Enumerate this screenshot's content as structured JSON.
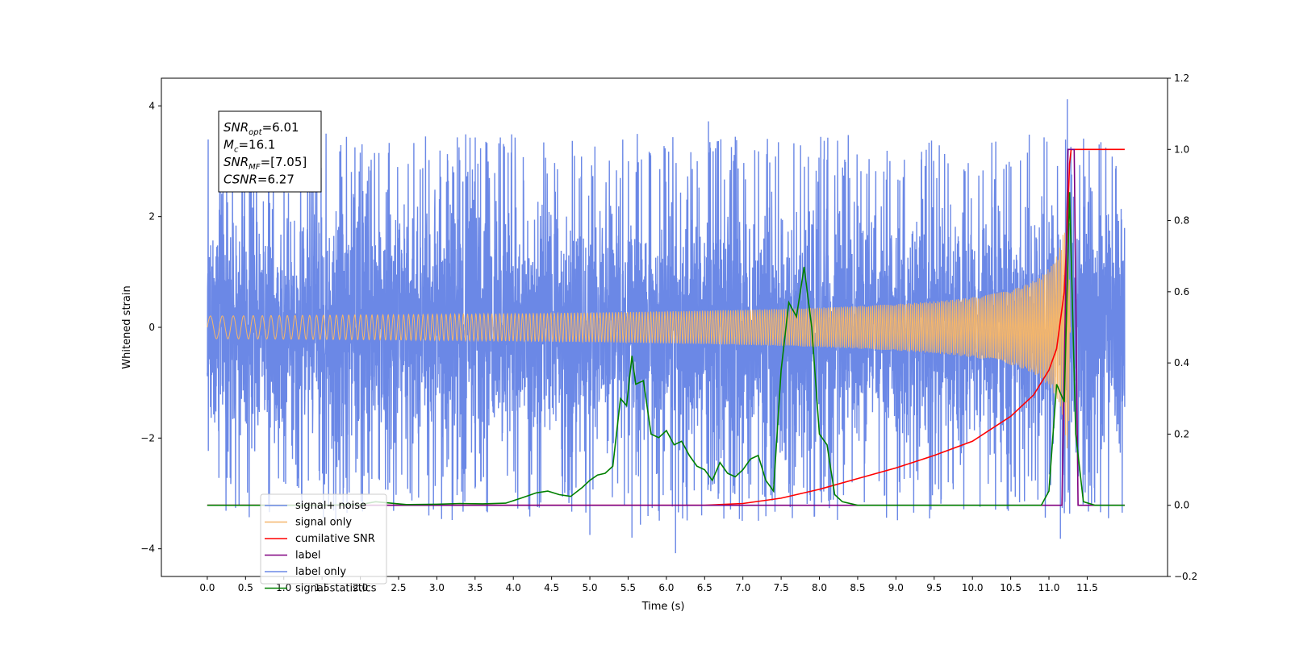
{
  "chart_data": {
    "type": "line",
    "xlabel": "Time (s)",
    "ylabel": "Whitened strain",
    "xlim": [
      -0.6,
      12.55
    ],
    "ylim": [
      -4.5,
      4.5
    ],
    "ylim_right": [
      -0.2,
      1.2
    ],
    "x_ticks": [
      "0.0",
      "0.5",
      "1.0",
      "1.5",
      "2.0",
      "2.5",
      "3.0",
      "3.5",
      "4.0",
      "4.5",
      "5.0",
      "5.5",
      "6.0",
      "6.5",
      "7.0",
      "7.5",
      "8.0",
      "8.5",
      "9.0",
      "9.5",
      "10.0",
      "10.5",
      "11.0",
      "11.5"
    ],
    "y_ticks_left": [
      "−4",
      "−2",
      "0",
      "2",
      "4"
    ],
    "y_ticks_right": [
      "−0.2",
      "0.0",
      "0.2",
      "0.4",
      "0.6",
      "0.8",
      "1.0",
      "1.2"
    ],
    "annotation": [
      {
        "sym": "SNR",
        "sub": "opt",
        "val": "=6.01"
      },
      {
        "sym": "M",
        "sub": "c",
        "val": "=16.1"
      },
      {
        "sym": "SNR",
        "sub": "MF",
        "val": "=[7.05]"
      },
      {
        "sym": "CSNR",
        "sub": "",
        "val": "=6.27"
      }
    ],
    "legend_position": "lower-left",
    "noise_band": {
      "x_range": [
        0.0,
        11.99
      ],
      "typical_amplitude": 2.5,
      "max_amplitude": 4.12,
      "min_amplitude": -4.08
    },
    "chirp": {
      "x_range": [
        0.0,
        11.28
      ],
      "peak_time": 11.25,
      "peak_amplitude": 2.6
    },
    "series": [
      {
        "name": "signal+ noise",
        "color": "#6b88e6"
      },
      {
        "name": "signal only",
        "color": "#f5b66a"
      },
      {
        "name": "cumilative SNR",
        "color": "#ff0000",
        "axis": "right",
        "x": [
          0,
          6.5,
          7.0,
          7.5,
          8.0,
          8.5,
          9.0,
          9.5,
          10.0,
          10.5,
          10.8,
          11.0,
          11.1,
          11.2,
          11.24,
          11.27,
          11.29,
          11.99
        ],
        "y": [
          0,
          0,
          0.005,
          0.02,
          0.045,
          0.075,
          0.105,
          0.14,
          0.18,
          0.25,
          0.31,
          0.38,
          0.44,
          0.6,
          0.78,
          0.96,
          1.0,
          1.0
        ]
      },
      {
        "name": "label",
        "color": "#800080",
        "axis": "right",
        "x": [
          0,
          11.17,
          11.25,
          11.33,
          11.38,
          11.99
        ],
        "y": [
          0,
          0,
          1.0,
          1.0,
          0,
          0
        ]
      },
      {
        "name": "label only",
        "color": "#6b88e6",
        "hidden_label": true
      },
      {
        "name": "signal statistics",
        "color": "#008000",
        "axis": "right",
        "x": [
          0,
          1.5,
          2.0,
          2.2,
          2.6,
          3.0,
          3.3,
          3.6,
          3.9,
          4.1,
          4.3,
          4.45,
          4.6,
          4.75,
          4.9,
          5.0,
          5.1,
          5.2,
          5.3,
          5.4,
          5.48,
          5.55,
          5.6,
          5.7,
          5.8,
          5.9,
          6.0,
          6.1,
          6.2,
          6.3,
          6.4,
          6.5,
          6.6,
          6.7,
          6.8,
          6.9,
          7.0,
          7.1,
          7.2,
          7.3,
          7.4,
          7.5,
          7.6,
          7.7,
          7.8,
          7.9,
          8.0,
          8.1,
          8.2,
          8.3,
          8.5,
          9.0,
          10.0,
          10.9,
          11.0,
          11.1,
          11.2,
          11.27,
          11.35,
          11.45,
          11.6,
          11.99
        ],
        "y": [
          0,
          0,
          0.002,
          0.01,
          0.002,
          0.003,
          0.005,
          0.004,
          0.006,
          0.02,
          0.035,
          0.04,
          0.03,
          0.025,
          0.05,
          0.07,
          0.085,
          0.09,
          0.11,
          0.3,
          0.28,
          0.42,
          0.34,
          0.35,
          0.2,
          0.19,
          0.21,
          0.17,
          0.18,
          0.14,
          0.11,
          0.1,
          0.07,
          0.12,
          0.09,
          0.08,
          0.1,
          0.13,
          0.14,
          0.07,
          0.04,
          0.38,
          0.57,
          0.53,
          0.67,
          0.5,
          0.2,
          0.17,
          0.03,
          0.01,
          0,
          0,
          0,
          0,
          0.04,
          0.34,
          0.29,
          0.88,
          0.2,
          0.01,
          0,
          0
        ]
      }
    ]
  }
}
